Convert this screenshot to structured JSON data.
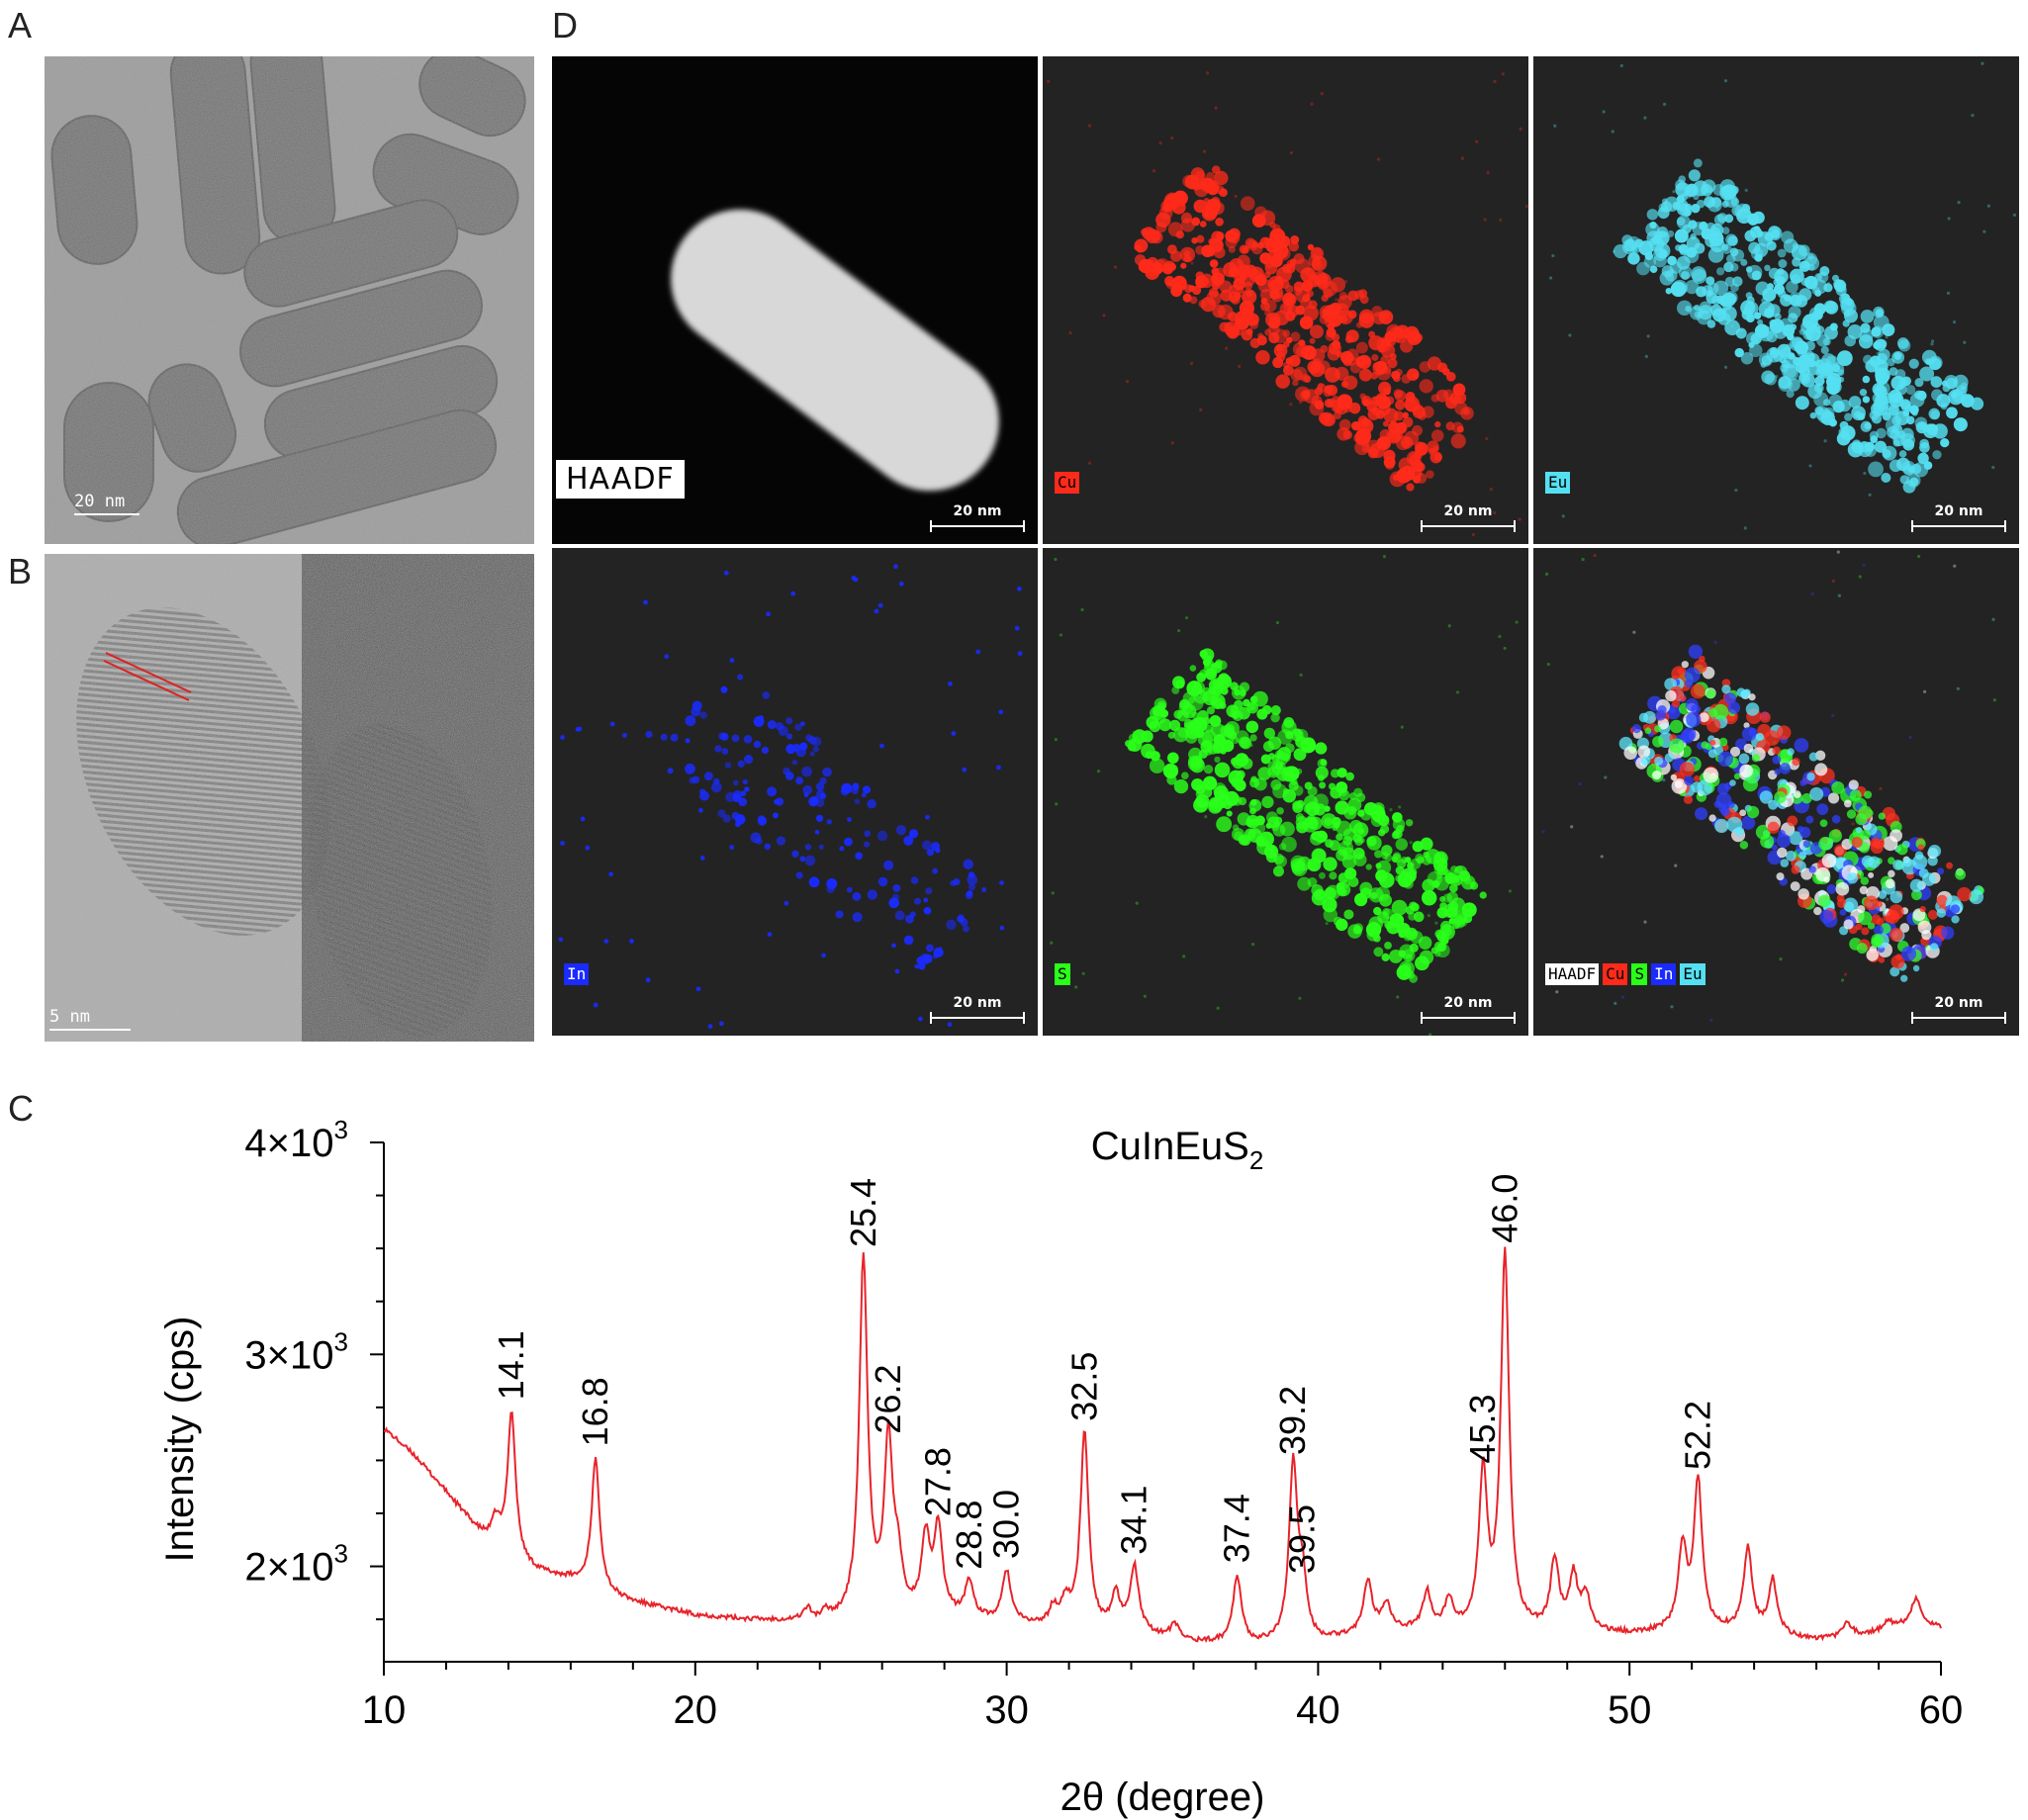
{
  "panels": {
    "a": {
      "letter": "A",
      "scale": "20 nm"
    },
    "b": {
      "letter": "B",
      "scale": "5 nm"
    },
    "c": {
      "letter": "C"
    },
    "d": {
      "letter": "D"
    }
  },
  "maps": [
    {
      "key": "haadf",
      "label": "HAADF",
      "color": "#dcdcdc",
      "scale": "20 nm"
    },
    {
      "key": "cu",
      "label": "Cu",
      "color": "#ff2a1a",
      "scale": "20 nm"
    },
    {
      "key": "eu",
      "label": "Eu",
      "color": "#55e0f2",
      "scale": "20 nm"
    },
    {
      "key": "in",
      "label": "In",
      "color": "#1a2bff",
      "scale": "20 nm"
    },
    {
      "key": "s",
      "label": "S",
      "color": "#2aff1a",
      "scale": "20 nm"
    },
    {
      "key": "overlay",
      "label": "",
      "color": "#cccccc",
      "scale": "20 nm"
    }
  ],
  "overlay_legend": [
    {
      "label": "HAADF",
      "bg": "#ffffff",
      "fg": "#000000"
    },
    {
      "label": "Cu",
      "bg": "#ff2a1a",
      "fg": "#000000"
    },
    {
      "label": "S",
      "bg": "#2aff1a",
      "fg": "#000000"
    },
    {
      "label": "In",
      "bg": "#1a2bff",
      "fg": "#ffffff"
    },
    {
      "label": "Eu",
      "bg": "#55e0f2",
      "fg": "#000000"
    }
  ],
  "chart_data": {
    "type": "line",
    "title": "CuInEuS",
    "title_subscript": "2",
    "xlabel": "2θ (degree)",
    "ylabel": "Intensity (cps)",
    "xlim": [
      10,
      60
    ],
    "ylim": [
      1550,
      4000
    ],
    "x_ticks": [
      "10",
      "20",
      "30",
      "40",
      "50",
      "60"
    ],
    "y_ticks": [
      {
        "value": 2000,
        "mantissa": "2×10",
        "exp": "3"
      },
      {
        "value": 3000,
        "mantissa": "3×10",
        "exp": "3"
      },
      {
        "value": 4000,
        "mantissa": "4×10",
        "exp": "3"
      }
    ],
    "line_color": "#e8232a",
    "baseline": [
      [
        10,
        2650
      ],
      [
        11,
        2520
      ],
      [
        12,
        2350
      ],
      [
        13,
        2170
      ],
      [
        14,
        2020
      ],
      [
        15,
        1970
      ],
      [
        16,
        1935
      ],
      [
        17,
        1870
      ],
      [
        18,
        1830
      ],
      [
        19,
        1800
      ],
      [
        20,
        1770
      ],
      [
        21,
        1755
      ],
      [
        22,
        1745
      ],
      [
        23,
        1740
      ],
      [
        24,
        1730
      ],
      [
        25,
        1740
      ],
      [
        26,
        1760
      ],
      [
        28,
        1760
      ],
      [
        30,
        1730
      ],
      [
        32,
        1700
      ],
      [
        34,
        1690
      ],
      [
        36,
        1640
      ],
      [
        38,
        1630
      ],
      [
        40,
        1640
      ],
      [
        42,
        1700
      ],
      [
        44,
        1690
      ],
      [
        46,
        1690
      ],
      [
        48,
        1690
      ],
      [
        50,
        1680
      ],
      [
        52,
        1700
      ],
      [
        54,
        1690
      ],
      [
        56,
        1650
      ],
      [
        58,
        1690
      ],
      [
        59,
        1730
      ],
      [
        60,
        1710
      ]
    ],
    "peaks": [
      {
        "x": 14.1,
        "y": 2720,
        "label": "14.1"
      },
      {
        "x": 16.8,
        "y": 2500,
        "label": "16.8"
      },
      {
        "x": 25.4,
        "y": 3440,
        "label": "25.4"
      },
      {
        "x": 26.2,
        "y": 2560,
        "label": "26.2"
      },
      {
        "x": 27.8,
        "y": 2170,
        "label": "27.8"
      },
      {
        "x": 28.8,
        "y": 1920,
        "label": "28.8"
      },
      {
        "x": 30.0,
        "y": 1970,
        "label": "30.0"
      },
      {
        "x": 32.5,
        "y": 2620,
        "label": "32.5"
      },
      {
        "x": 34.1,
        "y": 1990,
        "label": "34.1"
      },
      {
        "x": 37.4,
        "y": 1950,
        "label": "37.4"
      },
      {
        "x": 39.2,
        "y": 2460,
        "label": "39.2"
      },
      {
        "x": 39.5,
        "y": 1900,
        "label": "39.5"
      },
      {
        "x": 45.3,
        "y": 2420,
        "label": "45.3"
      },
      {
        "x": 46.0,
        "y": 3460,
        "label": "46.0"
      },
      {
        "x": 52.2,
        "y": 2390,
        "label": "52.2"
      }
    ],
    "minor_peaks": [
      {
        "x": 13.6,
        "y": 2200
      },
      {
        "x": 23.6,
        "y": 1790
      },
      {
        "x": 24.2,
        "y": 1770
      },
      {
        "x": 26.5,
        "y": 1980
      },
      {
        "x": 27.4,
        "y": 2110
      },
      {
        "x": 31.5,
        "y": 1790
      },
      {
        "x": 31.9,
        "y": 1820
      },
      {
        "x": 33.5,
        "y": 1850
      },
      {
        "x": 35.4,
        "y": 1720
      },
      {
        "x": 41.6,
        "y": 1920
      },
      {
        "x": 42.2,
        "y": 1820
      },
      {
        "x": 43.5,
        "y": 1870
      },
      {
        "x": 44.2,
        "y": 1830
      },
      {
        "x": 47.6,
        "y": 2020
      },
      {
        "x": 48.2,
        "y": 1940
      },
      {
        "x": 48.6,
        "y": 1850
      },
      {
        "x": 51.7,
        "y": 2080
      },
      {
        "x": 53.8,
        "y": 2080
      },
      {
        "x": 54.6,
        "y": 1930
      },
      {
        "x": 57.0,
        "y": 1730
      },
      {
        "x": 58.3,
        "y": 1740
      },
      {
        "x": 59.2,
        "y": 1850
      }
    ]
  }
}
